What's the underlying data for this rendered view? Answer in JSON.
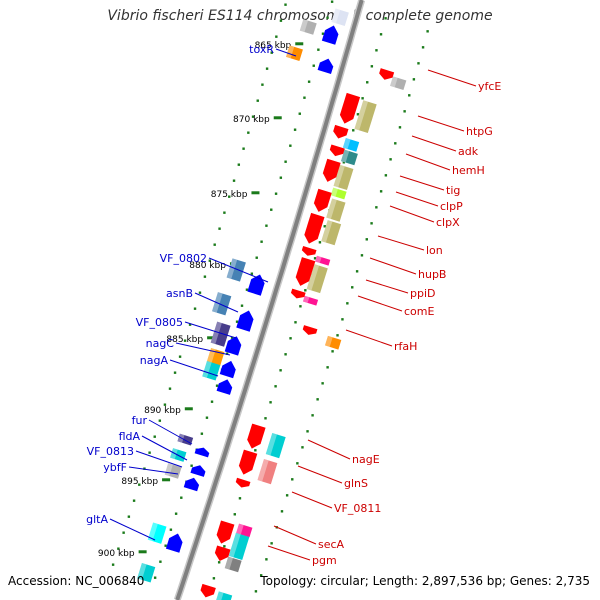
{
  "title": "Vibrio fischeri ES114 chromosome I, complete genome",
  "accession": "Accession: NC_006840",
  "topology": "Topology: circular; Length: 2,897,536 bp; Genes: 2,735",
  "colors": {
    "forward_gene_label": "#0000cc",
    "reverse_gene_label": "#cc0000",
    "backbone": "#808080",
    "tick": "#1a7a1a",
    "cds_forward": "#0000ff",
    "cds_reverse": "#ff0000"
  },
  "kbp_ticks": [
    "865 kbp",
    "870 kbp",
    "875 kbp",
    "880 kbp",
    "885 kbp",
    "890 kbp",
    "895 kbp",
    "900 kbp"
  ],
  "forward_genes": [
    "toxR",
    "VF_0802",
    "asnB",
    "VF_0805",
    "nagC",
    "nagA",
    "fur",
    "fldA",
    "VF_0813",
    "ybfF",
    "gltA"
  ],
  "reverse_genes": [
    "yfcE",
    "htpG",
    "adk",
    "hemH",
    "tig",
    "clpP",
    "clpX",
    "lon",
    "hupB",
    "ppiD",
    "comE",
    "rfaH",
    "nagE",
    "glnS",
    "VF_0811",
    "secA",
    "pgm"
  ]
}
